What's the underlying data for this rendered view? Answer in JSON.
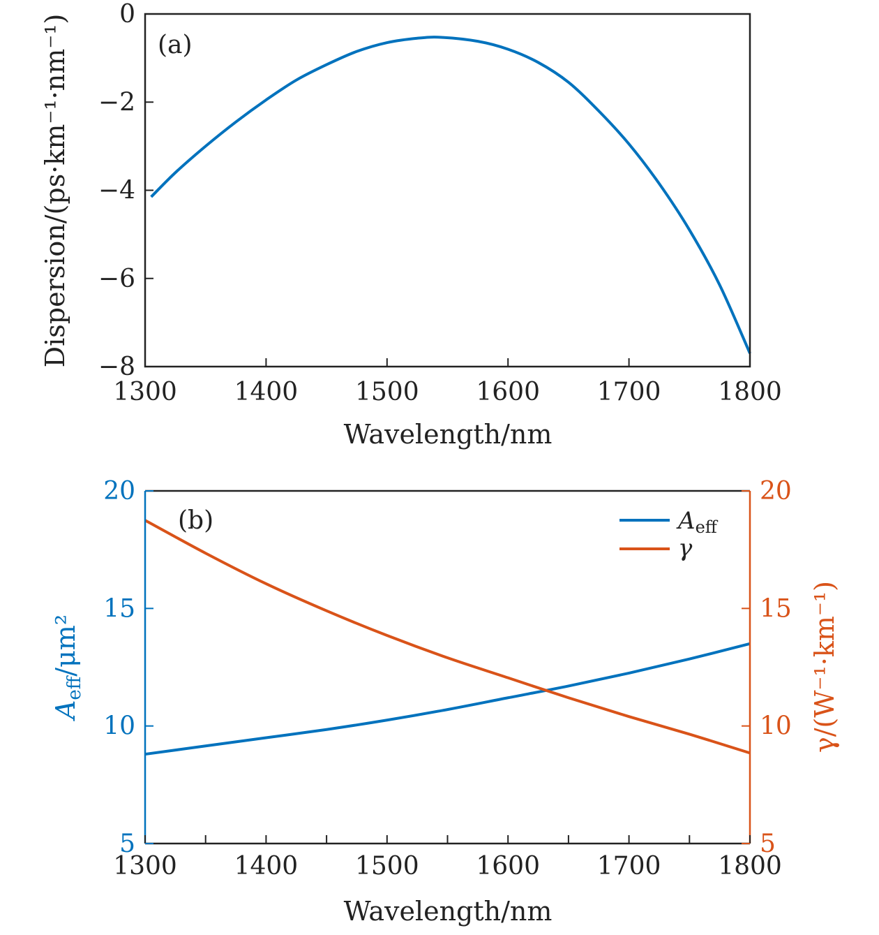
{
  "chart_data": [
    {
      "type": "line",
      "panel_label": "(a)",
      "xlabel": "Wavelength/nm",
      "ylabel": "Dispersion/(ps·km⁻¹·nm⁻¹)",
      "xlim": [
        1300,
        1800
      ],
      "ylim": [
        -8,
        0
      ],
      "xticks": [
        1300,
        1400,
        1500,
        1600,
        1700,
        1800
      ],
      "xtick_labels": [
        "1300",
        "1400",
        "1500",
        "1600",
        "1700",
        "1800"
      ],
      "yticks": [
        0,
        -2,
        -4,
        -6,
        -8
      ],
      "ytick_labels": [
        "0",
        "−2",
        "−4",
        "−6",
        "−8"
      ],
      "grid": false,
      "series": [
        {
          "color": "#0072BD",
          "x": [
            1305,
            1325,
            1350,
            1375,
            1400,
            1425,
            1450,
            1475,
            1500,
            1525,
            1545,
            1575,
            1600,
            1625,
            1650,
            1675,
            1700,
            1725,
            1750,
            1775,
            1800
          ],
          "y": [
            -4.15,
            -3.6,
            -3.0,
            -2.45,
            -1.95,
            -1.5,
            -1.15,
            -0.85,
            -0.65,
            -0.55,
            -0.53,
            -0.62,
            -0.8,
            -1.1,
            -1.55,
            -2.2,
            -2.95,
            -3.85,
            -4.9,
            -6.15,
            -7.7
          ]
        }
      ]
    },
    {
      "type": "line",
      "panel_label": "(b)",
      "xlabel": "Wavelength/nm",
      "ylabel_left": "A",
      "ylabel_left_sub": "eff",
      "ylabel_left_tail": "/μm²",
      "ylabel_right": "γ/(W⁻¹·km⁻¹)",
      "left_color": "#0072BD",
      "right_color": "#D95319",
      "xlim": [
        1300,
        1800
      ],
      "ylim_left": [
        5,
        20
      ],
      "ylim_right": [
        5,
        20
      ],
      "xticks": [
        1300,
        1400,
        1500,
        1600,
        1700,
        1800
      ],
      "xtick_labels": [
        "1300",
        "1400",
        "1500",
        "1600",
        "1700",
        "1800"
      ],
      "yticks_left": [
        5,
        10,
        15,
        20
      ],
      "ytick_labels_left": [
        "5",
        "10",
        "15",
        "20"
      ],
      "yticks_right": [
        5,
        10,
        15,
        20
      ],
      "ytick_labels_right": [
        "5",
        "10",
        "15",
        "20"
      ],
      "legend_position": "top-right",
      "grid": false,
      "series": [
        {
          "legend_main": "A",
          "legend_sub": "eff",
          "color": "#0072BD",
          "axis": "left",
          "x": [
            1300,
            1350,
            1400,
            1450,
            1500,
            1550,
            1600,
            1650,
            1700,
            1750,
            1800
          ],
          "y": [
            8.8,
            9.15,
            9.5,
            9.85,
            10.25,
            10.7,
            11.2,
            11.7,
            12.25,
            12.85,
            13.5
          ]
        },
        {
          "legend_main": "γ",
          "legend_sub": "",
          "color": "#D95319",
          "axis": "right",
          "x": [
            1300,
            1350,
            1400,
            1450,
            1500,
            1550,
            1600,
            1650,
            1700,
            1750,
            1800
          ],
          "y": [
            18.75,
            17.35,
            16.05,
            14.9,
            13.85,
            12.9,
            12.05,
            11.2,
            10.4,
            9.65,
            8.85
          ]
        }
      ]
    }
  ]
}
